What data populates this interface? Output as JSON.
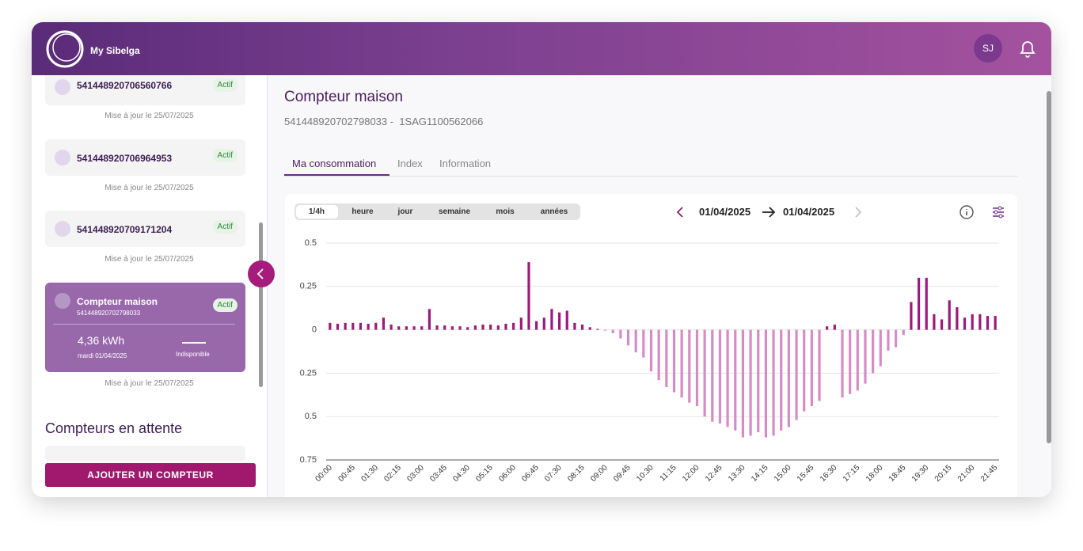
{
  "header": {
    "brand": "My Sibelga",
    "avatar": "SJ"
  },
  "sidebar": {
    "meters": [
      {
        "id": "541448920706560766",
        "status": "Actif",
        "updated": "Mise à jour le 25/07/2025"
      },
      {
        "id": "541448920706964953",
        "status": "Actif",
        "updated": "Mise à jour le 25/07/2025"
      },
      {
        "id": "541448920709171204",
        "status": "Actif",
        "updated": "Mise à jour le 25/07/2025"
      }
    ],
    "selected": {
      "name": "Compteur maison",
      "id": "541448920702798033",
      "status": "Actif",
      "value": "4,36 kWh",
      "date": "mardi 01/04/2025",
      "other": "Indisponible",
      "updated": "Mise à jour le 25/07/2025"
    },
    "pending_title": "Compteurs en attente",
    "add_button": "AJOUTER UN COMPTEUR"
  },
  "main": {
    "title": "Compteur maison",
    "subtitle": "541448920702798033 -  1SAG1100562066",
    "tabs": [
      "Ma consommation",
      "Index",
      "Information"
    ],
    "periods": [
      "1/4h",
      "heure",
      "jour",
      "semaine",
      "mois",
      "années"
    ],
    "date_from": "01/04/2025",
    "date_to": "01/04/2025"
  },
  "chart_data": {
    "type": "bar",
    "categories": [
      "00:00",
      null,
      null,
      "00:45",
      null,
      null,
      "01:30",
      null,
      null,
      "02:15",
      null,
      null,
      "03:00",
      null,
      null,
      "03:45",
      null,
      null,
      "04:30",
      null,
      null,
      "05:15",
      null,
      null,
      "06:00",
      null,
      null,
      "06:45",
      null,
      null,
      "07:30",
      null,
      null,
      "08:15",
      null,
      null,
      "09:00",
      null,
      null,
      "09:45",
      null,
      null,
      "10:30",
      null,
      null,
      "11:15",
      null,
      null,
      "12:00",
      null,
      null,
      "12:45",
      null,
      null,
      "13:30",
      null,
      null,
      "14:15",
      null,
      null,
      "15:00",
      null,
      null,
      "15:45",
      null,
      null,
      "16:30",
      null,
      null,
      "17:15",
      null,
      null,
      "18:00",
      null,
      null,
      "18:45",
      null,
      null,
      "19:30",
      null,
      null,
      "20:15",
      null,
      null,
      "21:00",
      null,
      null,
      "21:45"
    ],
    "values": [
      0.04,
      0.035,
      0.04,
      0.04,
      0.04,
      0.035,
      0.04,
      0.07,
      0.03,
      0.02,
      0.02,
      0.02,
      0.02,
      0.12,
      0.025,
      0.025,
      0.02,
      0.02,
      0.015,
      0.025,
      0.03,
      0.03,
      0.025,
      0.035,
      0.04,
      0.07,
      0.39,
      0.05,
      0.07,
      0.12,
      0.1,
      0.11,
      0.04,
      0.03,
      0.015,
      0.005,
      -0.005,
      -0.02,
      -0.05,
      -0.09,
      -0.13,
      -0.16,
      -0.24,
      -0.29,
      -0.33,
      -0.36,
      -0.39,
      -0.42,
      -0.44,
      -0.5,
      -0.53,
      -0.54,
      -0.56,
      -0.58,
      -0.62,
      -0.61,
      -0.59,
      -0.62,
      -0.61,
      -0.58,
      -0.56,
      -0.52,
      -0.47,
      -0.44,
      -0.41,
      0.02,
      0.03,
      -0.39,
      -0.37,
      -0.35,
      -0.31,
      -0.25,
      -0.21,
      -0.12,
      -0.1,
      -0.03,
      0.16,
      0.3,
      0.3,
      0.09,
      0.06,
      0.17,
      0.13,
      0.07,
      0.09,
      0.09,
      0.08,
      0.08
    ],
    "color": "#9b1a7b",
    "negative_color": "#d68bc5",
    "ylim": [
      -0.75,
      0.5
    ],
    "yticks": [
      0.5,
      0.25,
      0,
      {
        "value": -0.25,
        "label": "0.25"
      },
      {
        "value": -0.5,
        "label": "0.5"
      },
      {
        "value": -0.75,
        "label": "0.75"
      }
    ],
    "grid": true
  }
}
